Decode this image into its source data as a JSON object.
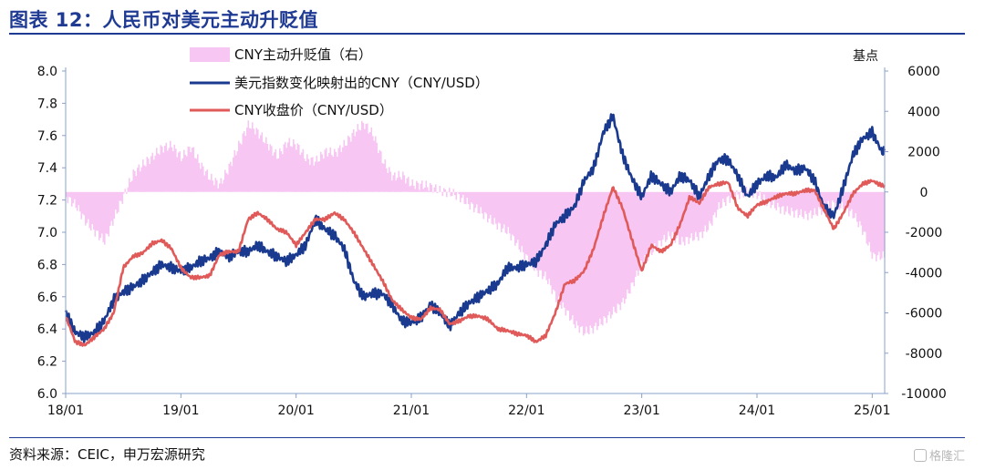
{
  "header": {
    "title": "图表 12：人民币对美元主动升贬值"
  },
  "footer": {
    "source": "资料来源：CEIC，申万宏源研究",
    "watermark": "格隆汇"
  },
  "chart_data": {
    "type": "line",
    "legend_placement": "top-left",
    "left_axis": {
      "ylim": [
        6.0,
        8.0
      ],
      "ticks": [
        "8.0",
        "7.8",
        "7.6",
        "7.4",
        "7.2",
        "7.0",
        "6.8",
        "6.6",
        "6.4",
        "6.2",
        "6.0"
      ]
    },
    "right_axis": {
      "label": "基点",
      "ylim": [
        -10000,
        6000
      ],
      "ticks": [
        "6000",
        "4000",
        "2000",
        "0",
        "-2000",
        "-4000",
        "-6000",
        "-8000",
        "-10000"
      ]
    },
    "x_axis": {
      "ticks": [
        "18/01",
        "19/01",
        "20/01",
        "21/01",
        "22/01",
        "23/01",
        "24/01",
        "25/01"
      ]
    },
    "colors": {
      "bar": "#f7c6f3",
      "dollar_line": "#1a3a8f",
      "cny_line": "#e05a5a",
      "axis": "#8aa0c8"
    },
    "series": [
      {
        "name": "CNY主动升贬值（右）",
        "type": "area",
        "axis": "right",
        "points": [
          [
            "2018-01",
            -300
          ],
          [
            "2018-02",
            -600
          ],
          [
            "2018-03",
            -1300
          ],
          [
            "2018-04",
            -1800
          ],
          [
            "2018-05",
            -2300
          ],
          [
            "2018-06",
            -1200
          ],
          [
            "2018-07",
            -200
          ],
          [
            "2018-08",
            800
          ],
          [
            "2018-09",
            1200
          ],
          [
            "2018-10",
            1600
          ],
          [
            "2018-11",
            2100
          ],
          [
            "2018-12",
            2300
          ],
          [
            "2019-01",
            1800
          ],
          [
            "2019-02",
            2400
          ],
          [
            "2019-03",
            1500
          ],
          [
            "2019-04",
            800
          ],
          [
            "2019-05",
            400
          ],
          [
            "2019-06",
            1200
          ],
          [
            "2019-07",
            2200
          ],
          [
            "2019-08",
            3200
          ],
          [
            "2019-09",
            2800
          ],
          [
            "2019-10",
            2300
          ],
          [
            "2019-11",
            1800
          ],
          [
            "2019-12",
            2600
          ],
          [
            "2020-01",
            2500
          ],
          [
            "2020-02",
            1800
          ],
          [
            "2020-03",
            1600
          ],
          [
            "2020-04",
            2000
          ],
          [
            "2020-05",
            1800
          ],
          [
            "2020-06",
            2200
          ],
          [
            "2020-07",
            2800
          ],
          [
            "2020-08",
            3300
          ],
          [
            "2020-09",
            2800
          ],
          [
            "2020-10",
            1600
          ],
          [
            "2020-11",
            900
          ],
          [
            "2020-12",
            1000
          ],
          [
            "2021-01",
            500
          ],
          [
            "2021-02",
            400
          ],
          [
            "2021-03",
            200
          ],
          [
            "2021-04",
            -100
          ],
          [
            "2021-05",
            -200
          ],
          [
            "2021-06",
            -400
          ],
          [
            "2021-07",
            -700
          ],
          [
            "2021-08",
            -900
          ],
          [
            "2021-09",
            -1200
          ],
          [
            "2021-10",
            -1500
          ],
          [
            "2021-11",
            -1800
          ],
          [
            "2021-12",
            -2500
          ],
          [
            "2022-01",
            -3300
          ],
          [
            "2022-02",
            -4000
          ],
          [
            "2022-03",
            -4400
          ],
          [
            "2022-04",
            -5400
          ],
          [
            "2022-05",
            -6000
          ],
          [
            "2022-06",
            -6600
          ],
          [
            "2022-07",
            -6900
          ],
          [
            "2022-08",
            -6600
          ],
          [
            "2022-09",
            -6200
          ],
          [
            "2022-10",
            -5800
          ],
          [
            "2022-11",
            -5400
          ],
          [
            "2022-12",
            -4600
          ],
          [
            "2023-01",
            -3600
          ],
          [
            "2023-02",
            -3100
          ],
          [
            "2023-03",
            -2600
          ],
          [
            "2023-04",
            -2200
          ],
          [
            "2023-05",
            -2500
          ],
          [
            "2023-06",
            -2200
          ],
          [
            "2023-07",
            -2000
          ],
          [
            "2023-08",
            -1500
          ],
          [
            "2023-09",
            -600
          ],
          [
            "2023-10",
            -300
          ],
          [
            "2023-11",
            -200
          ],
          [
            "2023-12",
            -100
          ],
          [
            "2024-01",
            -300
          ],
          [
            "2024-02",
            -600
          ],
          [
            "2024-03",
            -800
          ],
          [
            "2024-04",
            -900
          ],
          [
            "2024-05",
            -900
          ],
          [
            "2024-06",
            -1000
          ],
          [
            "2024-07",
            -900
          ],
          [
            "2024-08",
            -700
          ],
          [
            "2024-09",
            -600
          ],
          [
            "2024-10",
            -900
          ],
          [
            "2024-11",
            -1300
          ],
          [
            "2024-12",
            -2100
          ],
          [
            "2025-01",
            -3300
          ],
          [
            "2025-02",
            -3200
          ]
        ]
      },
      {
        "name": "美元指数变化映射出的CNY（CNY/USD）",
        "type": "line",
        "axis": "left",
        "points": [
          [
            "2018-01",
            6.5
          ],
          [
            "2018-02",
            6.38
          ],
          [
            "2018-03",
            6.35
          ],
          [
            "2018-04",
            6.38
          ],
          [
            "2018-05",
            6.45
          ],
          [
            "2018-06",
            6.58
          ],
          [
            "2018-07",
            6.63
          ],
          [
            "2018-08",
            6.66
          ],
          [
            "2018-09",
            6.7
          ],
          [
            "2018-10",
            6.75
          ],
          [
            "2018-11",
            6.8
          ],
          [
            "2018-12",
            6.78
          ],
          [
            "2019-01",
            6.76
          ],
          [
            "2019-02",
            6.78
          ],
          [
            "2019-03",
            6.82
          ],
          [
            "2019-04",
            6.84
          ],
          [
            "2019-05",
            6.88
          ],
          [
            "2019-06",
            6.85
          ],
          [
            "2019-07",
            6.88
          ],
          [
            "2019-08",
            6.88
          ],
          [
            "2019-09",
            6.92
          ],
          [
            "2019-10",
            6.88
          ],
          [
            "2019-11",
            6.85
          ],
          [
            "2019-12",
            6.82
          ],
          [
            "2020-01",
            6.86
          ],
          [
            "2020-02",
            6.92
          ],
          [
            "2020-03",
            7.08
          ],
          [
            "2020-04",
            7.02
          ],
          [
            "2020-05",
            6.98
          ],
          [
            "2020-06",
            6.9
          ],
          [
            "2020-07",
            6.7
          ],
          [
            "2020-08",
            6.6
          ],
          [
            "2020-09",
            6.62
          ],
          [
            "2020-10",
            6.62
          ],
          [
            "2020-11",
            6.55
          ],
          [
            "2020-12",
            6.45
          ],
          [
            "2021-01",
            6.44
          ],
          [
            "2021-02",
            6.47
          ],
          [
            "2021-03",
            6.55
          ],
          [
            "2021-04",
            6.5
          ],
          [
            "2021-05",
            6.42
          ],
          [
            "2021-06",
            6.5
          ],
          [
            "2021-07",
            6.56
          ],
          [
            "2021-08",
            6.6
          ],
          [
            "2021-09",
            6.64
          ],
          [
            "2021-10",
            6.68
          ],
          [
            "2021-11",
            6.78
          ],
          [
            "2021-12",
            6.78
          ],
          [
            "2022-01",
            6.8
          ],
          [
            "2022-02",
            6.82
          ],
          [
            "2022-03",
            6.92
          ],
          [
            "2022-04",
            7.05
          ],
          [
            "2022-05",
            7.1
          ],
          [
            "2022-06",
            7.16
          ],
          [
            "2022-07",
            7.32
          ],
          [
            "2022-08",
            7.4
          ],
          [
            "2022-09",
            7.62
          ],
          [
            "2022-10",
            7.72
          ],
          [
            "2022-11",
            7.48
          ],
          [
            "2022-12",
            7.33
          ],
          [
            "2023-01",
            7.22
          ],
          [
            "2023-02",
            7.35
          ],
          [
            "2023-03",
            7.3
          ],
          [
            "2023-04",
            7.25
          ],
          [
            "2023-05",
            7.35
          ],
          [
            "2023-06",
            7.32
          ],
          [
            "2023-07",
            7.22
          ],
          [
            "2023-08",
            7.35
          ],
          [
            "2023-09",
            7.45
          ],
          [
            "2023-10",
            7.45
          ],
          [
            "2023-11",
            7.35
          ],
          [
            "2023-12",
            7.22
          ],
          [
            "2024-01",
            7.3
          ],
          [
            "2024-02",
            7.35
          ],
          [
            "2024-03",
            7.34
          ],
          [
            "2024-04",
            7.42
          ],
          [
            "2024-05",
            7.38
          ],
          [
            "2024-06",
            7.4
          ],
          [
            "2024-07",
            7.32
          ],
          [
            "2024-08",
            7.15
          ],
          [
            "2024-09",
            7.1
          ],
          [
            "2024-10",
            7.28
          ],
          [
            "2024-11",
            7.48
          ],
          [
            "2024-12",
            7.58
          ],
          [
            "2025-01",
            7.62
          ],
          [
            "2025-02",
            7.5
          ]
        ]
      },
      {
        "name": "CNY收盘价（CNY/USD）",
        "type": "line",
        "axis": "left",
        "points": [
          [
            "2018-01",
            6.48
          ],
          [
            "2018-02",
            6.32
          ],
          [
            "2018-03",
            6.3
          ],
          [
            "2018-04",
            6.35
          ],
          [
            "2018-05",
            6.4
          ],
          [
            "2018-06",
            6.5
          ],
          [
            "2018-07",
            6.78
          ],
          [
            "2018-08",
            6.85
          ],
          [
            "2018-09",
            6.87
          ],
          [
            "2018-10",
            6.93
          ],
          [
            "2018-11",
            6.95
          ],
          [
            "2018-12",
            6.9
          ],
          [
            "2019-01",
            6.78
          ],
          [
            "2019-02",
            6.72
          ],
          [
            "2019-03",
            6.72
          ],
          [
            "2019-04",
            6.73
          ],
          [
            "2019-05",
            6.86
          ],
          [
            "2019-06",
            6.88
          ],
          [
            "2019-07",
            6.88
          ],
          [
            "2019-08",
            7.08
          ],
          [
            "2019-09",
            7.12
          ],
          [
            "2019-10",
            7.08
          ],
          [
            "2019-11",
            7.02
          ],
          [
            "2019-12",
            7.0
          ],
          [
            "2020-01",
            6.92
          ],
          [
            "2020-02",
            7.0
          ],
          [
            "2020-03",
            7.08
          ],
          [
            "2020-04",
            7.08
          ],
          [
            "2020-05",
            7.12
          ],
          [
            "2020-06",
            7.08
          ],
          [
            "2020-07",
            7.0
          ],
          [
            "2020-08",
            6.9
          ],
          [
            "2020-09",
            6.8
          ],
          [
            "2020-10",
            6.7
          ],
          [
            "2020-11",
            6.58
          ],
          [
            "2020-12",
            6.52
          ],
          [
            "2021-01",
            6.47
          ],
          [
            "2021-02",
            6.46
          ],
          [
            "2021-03",
            6.53
          ],
          [
            "2021-04",
            6.52
          ],
          [
            "2021-05",
            6.43
          ],
          [
            "2021-06",
            6.45
          ],
          [
            "2021-07",
            6.48
          ],
          [
            "2021-08",
            6.48
          ],
          [
            "2021-09",
            6.46
          ],
          [
            "2021-10",
            6.4
          ],
          [
            "2021-11",
            6.39
          ],
          [
            "2021-12",
            6.37
          ],
          [
            "2022-01",
            6.36
          ],
          [
            "2022-02",
            6.32
          ],
          [
            "2022-03",
            6.36
          ],
          [
            "2022-04",
            6.5
          ],
          [
            "2022-05",
            6.68
          ],
          [
            "2022-06",
            6.7
          ],
          [
            "2022-07",
            6.76
          ],
          [
            "2022-08",
            6.9
          ],
          [
            "2022-09",
            7.1
          ],
          [
            "2022-10",
            7.28
          ],
          [
            "2022-11",
            7.15
          ],
          [
            "2022-12",
            6.95
          ],
          [
            "2023-01",
            6.76
          ],
          [
            "2023-02",
            6.92
          ],
          [
            "2023-03",
            6.88
          ],
          [
            "2023-04",
            6.92
          ],
          [
            "2023-05",
            7.05
          ],
          [
            "2023-06",
            7.22
          ],
          [
            "2023-07",
            7.18
          ],
          [
            "2023-08",
            7.28
          ],
          [
            "2023-09",
            7.3
          ],
          [
            "2023-10",
            7.31
          ],
          [
            "2023-11",
            7.15
          ],
          [
            "2023-12",
            7.1
          ],
          [
            "2024-01",
            7.17
          ],
          [
            "2024-02",
            7.19
          ],
          [
            "2024-03",
            7.22
          ],
          [
            "2024-04",
            7.24
          ],
          [
            "2024-05",
            7.24
          ],
          [
            "2024-06",
            7.26
          ],
          [
            "2024-07",
            7.26
          ],
          [
            "2024-08",
            7.14
          ],
          [
            "2024-09",
            7.02
          ],
          [
            "2024-10",
            7.12
          ],
          [
            "2024-11",
            7.24
          ],
          [
            "2024-12",
            7.3
          ],
          [
            "2025-01",
            7.32
          ],
          [
            "2025-02",
            7.29
          ]
        ]
      }
    ]
  }
}
